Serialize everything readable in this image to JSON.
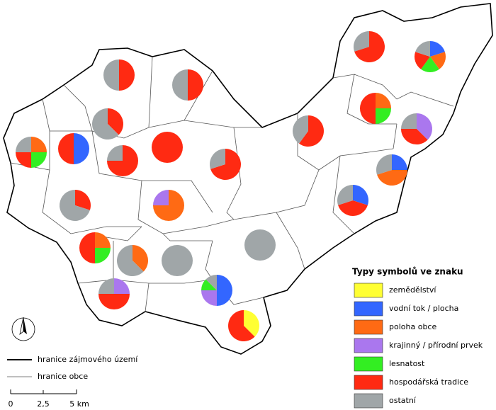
{
  "legend": {
    "title": "Typy symbolů ve znaku",
    "items": [
      {
        "name": "zemědělství",
        "color": "#ffff33"
      },
      {
        "name": "vodní tok / plocha",
        "color": "#3366ff"
      },
      {
        "name": "poloha obce",
        "color": "#ff6a14"
      },
      {
        "name": "krajinný / přírodní prvek",
        "color": "#aa77ee"
      },
      {
        "name": "lesnatost",
        "color": "#33ee22"
      },
      {
        "name": "hospodářská tradice",
        "color": "#ff2a12"
      },
      {
        "name": "ostatní",
        "color": "#a0a6a8"
      }
    ],
    "lines": [
      "hranice zájmového území",
      "hranice obce"
    ]
  },
  "scale": {
    "labels": [
      "0",
      "2,5",
      "5 km"
    ]
  },
  "pies": [
    {
      "values": [
        0,
        0,
        0,
        0,
        0,
        50,
        50
      ]
    },
    {
      "values": [
        0,
        0,
        0,
        0,
        0,
        50,
        50
      ]
    },
    {
      "values": [
        0,
        0,
        0,
        0,
        0,
        37.5,
        62.5
      ]
    },
    {
      "values": [
        0,
        0,
        25,
        0,
        25,
        25,
        25
      ]
    },
    {
      "values": [
        0,
        50,
        0,
        0,
        0,
        50,
        0
      ]
    },
    {
      "values": [
        0,
        0,
        0,
        0,
        0,
        75,
        25
      ]
    },
    {
      "values": [
        0,
        0,
        0,
        0,
        0,
        100,
        0
      ]
    },
    {
      "values": [
        0,
        0,
        0,
        0,
        0,
        70,
        30
      ]
    },
    {
      "values": [
        0,
        0,
        0,
        0,
        0,
        30,
        70
      ]
    },
    {
      "values": [
        0,
        0,
        75,
        25,
        0,
        0,
        0
      ]
    },
    {
      "values": [
        0,
        0,
        25,
        0,
        25,
        50,
        0
      ]
    },
    {
      "values": [
        0,
        0,
        37.5,
        0,
        0,
        0,
        62.5
      ]
    },
    {
      "values": [
        0,
        0,
        0,
        0,
        0,
        0,
        100
      ]
    },
    {
      "values": [
        0,
        0,
        0,
        0,
        0,
        0,
        100
      ]
    },
    {
      "values": [
        0,
        0,
        0,
        25,
        0,
        50,
        25
      ]
    },
    {
      "values": [
        0,
        50,
        0,
        25,
        12.5,
        0,
        12.5
      ]
    },
    {
      "values": [
        37.5,
        0,
        0,
        0,
        0,
        62.5,
        0
      ]
    },
    {
      "values": [
        0,
        0,
        0,
        0,
        0,
        70,
        30
      ]
    },
    {
      "values": [
        0,
        20,
        20,
        0,
        20,
        20,
        20
      ]
    },
    {
      "values": [
        0,
        0,
        25,
        0,
        25,
        50,
        0
      ]
    },
    {
      "values": [
        0,
        0,
        0,
        37.5,
        0,
        37.5,
        25
      ]
    },
    {
      "values": [
        0,
        0,
        0,
        0,
        0,
        60,
        40
      ]
    },
    {
      "values": [
        0,
        25,
        45,
        0,
        0,
        0,
        30
      ]
    },
    {
      "values": [
        0,
        30,
        0,
        0,
        0,
        40,
        30
      ]
    }
  ]
}
